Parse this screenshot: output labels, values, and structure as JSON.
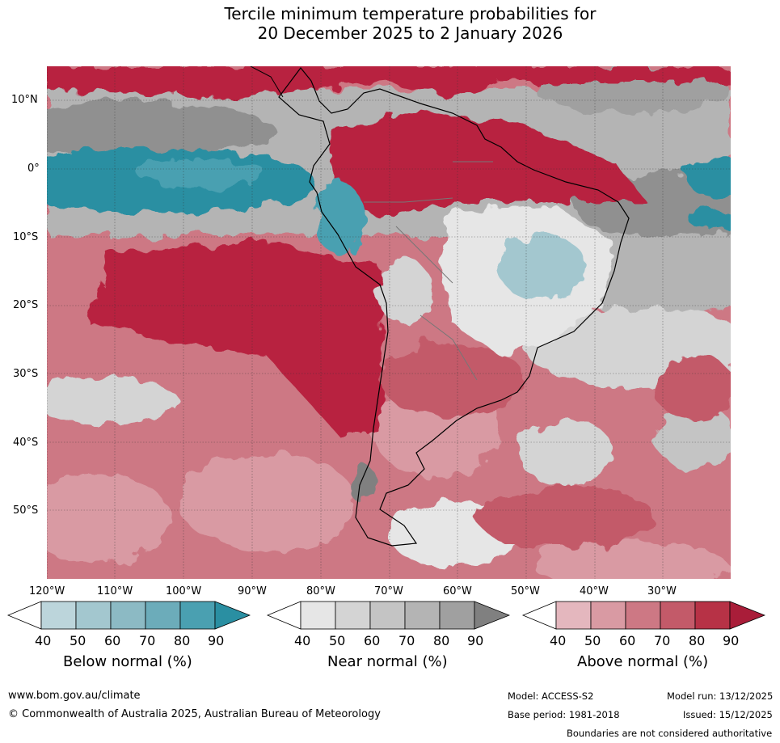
{
  "title": {
    "line1": "Tercile minimum temperature probabilities for",
    "line2": "20 December 2025 to 2 January 2026"
  },
  "map": {
    "lat_labels": [
      "10°N",
      "0°",
      "10°S",
      "20°S",
      "30°S",
      "40°S",
      "50°S"
    ],
    "lon_labels": [
      "120°W",
      "110°W",
      "100°W",
      "90°W",
      "80°W",
      "70°W",
      "60°W",
      "50°W",
      "40°W",
      "30°W"
    ]
  },
  "legends": [
    {
      "title": "Below normal (%)",
      "ticks": [
        "40",
        "50",
        "60",
        "70",
        "80",
        "90"
      ],
      "colors": [
        "#ffffff",
        "#bcd5db",
        "#a3c7cf",
        "#8cbac4",
        "#6cacba",
        "#4aa0b1",
        "#2a8fa2"
      ]
    },
    {
      "title": "Near normal (%)",
      "ticks": [
        "40",
        "50",
        "60",
        "70",
        "80",
        "90"
      ],
      "colors": [
        "#ffffff",
        "#e6e6e6",
        "#d4d4d4",
        "#c4c4c4",
        "#b4b4b4",
        "#a0a0a0",
        "#808080"
      ]
    },
    {
      "title": "Above normal (%)",
      "ticks": [
        "40",
        "50",
        "60",
        "70",
        "80",
        "90"
      ],
      "colors": [
        "#ffffff",
        "#e4b7be",
        "#d99aa3",
        "#cd7884",
        "#c35a69",
        "#b73246",
        "#a91d39"
      ]
    }
  ],
  "footer": {
    "website": "www.bom.gov.au/climate",
    "copyright": "© Commonwealth of Australia 2025, Australian Bureau of Meteorology",
    "model": "Model: ACCESS-S2",
    "model_run": "Model run: 13/12/2025",
    "base_period": "Base period: 1981-2018",
    "issued": "Issued: 15/12/2025",
    "disclaimer": "Boundaries are not considered authoritative"
  }
}
